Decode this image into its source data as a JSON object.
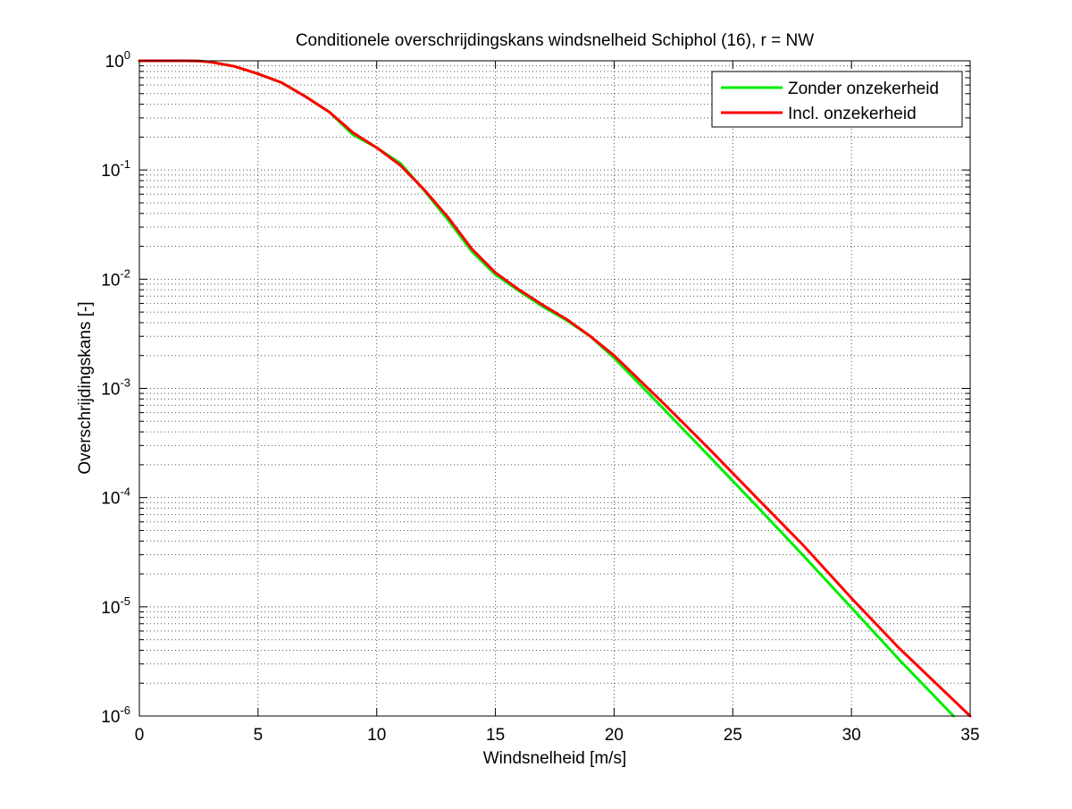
{
  "chart_data": {
    "type": "line",
    "title": "Conditionele overschrijdingskans windsnelheid Schiphol (16), r = NW",
    "xlabel": "Windsnelheid [m/s]",
    "ylabel": "Overschrijdingskans [-]",
    "xlim": [
      0,
      35
    ],
    "ylim": [
      1e-06,
      1
    ],
    "yscale": "log",
    "grid": true,
    "legend_position": "top-right",
    "x_ticks": [
      "0",
      "5",
      "10",
      "15",
      "20",
      "25",
      "30",
      "35"
    ],
    "y_ticks": [
      {
        "base": "10",
        "exp": "-6"
      },
      {
        "base": "10",
        "exp": "-5"
      },
      {
        "base": "10",
        "exp": "-4"
      },
      {
        "base": "10",
        "exp": "-3"
      },
      {
        "base": "10",
        "exp": "-2"
      },
      {
        "base": "10",
        "exp": "-1"
      },
      {
        "base": "10",
        "exp": "0"
      }
    ],
    "series": [
      {
        "name": "Zonder onzekerheid",
        "color": "#00ee00",
        "x": [
          0,
          1,
          2,
          2.5,
          3,
          4,
          5,
          6,
          7,
          8,
          9,
          10,
          11,
          12,
          13,
          14,
          15,
          16,
          17,
          18,
          19,
          20,
          22,
          24,
          26,
          28,
          30,
          32,
          34.3
        ],
        "y": [
          1,
          1,
          1,
          0.995,
          0.975,
          0.89,
          0.76,
          0.63,
          0.47,
          0.34,
          0.21,
          0.16,
          0.115,
          0.065,
          0.035,
          0.018,
          0.011,
          0.0078,
          0.0056,
          0.0042,
          0.003,
          0.0019,
          0.00068,
          0.00024,
          8.4e-05,
          2.9e-05,
          9.8e-06,
          3.3e-06,
          1e-06
        ]
      },
      {
        "name": "Incl. onzekerheid",
        "color": "#ff0000",
        "x": [
          0,
          1,
          2,
          2.5,
          3,
          4,
          5,
          6,
          7,
          8,
          9,
          10,
          11,
          12,
          13,
          14,
          15,
          16,
          17,
          18,
          19,
          20,
          22,
          24,
          26,
          28,
          30,
          32,
          35
        ],
        "y": [
          1,
          1,
          1,
          0.995,
          0.975,
          0.89,
          0.76,
          0.63,
          0.47,
          0.34,
          0.22,
          0.16,
          0.11,
          0.066,
          0.037,
          0.019,
          0.0115,
          0.008,
          0.0058,
          0.0043,
          0.003,
          0.002,
          0.00076,
          0.00028,
          0.0001,
          3.6e-05,
          1.2e-05,
          4.2e-06,
          1e-06
        ]
      }
    ]
  }
}
